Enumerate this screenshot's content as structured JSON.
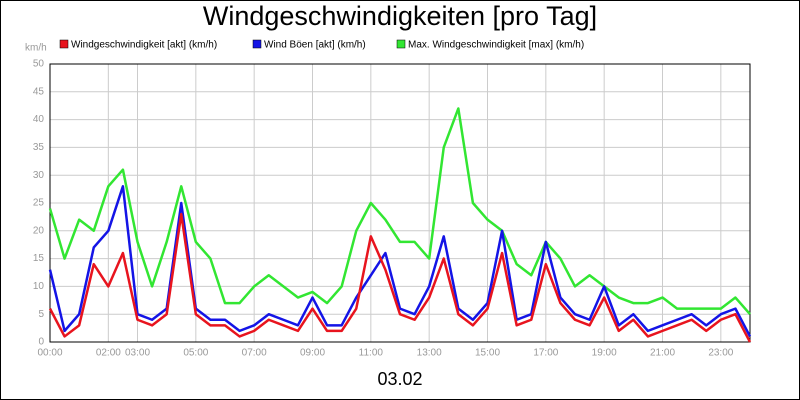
{
  "chart_data": {
    "type": "line",
    "title": "Windgeschwindigkeiten [pro Tag]",
    "y_label": "km/h",
    "x_label": "03.02",
    "x": [
      0,
      0.5,
      1,
      1.5,
      2,
      2.5,
      3,
      3.5,
      4,
      4.5,
      5,
      5.5,
      6,
      6.5,
      7,
      7.5,
      8,
      8.5,
      9,
      9.5,
      10,
      10.5,
      11,
      11.5,
      12,
      12.5,
      13,
      13.5,
      14,
      14.5,
      15,
      15.5,
      16,
      16.5,
      17,
      17.5,
      18,
      18.5,
      19,
      19.5,
      20,
      20.5,
      21,
      21.5,
      22,
      22.5,
      23,
      23.5,
      24
    ],
    "series": [
      {
        "name": "Windgeschwindigkeit [akt] (km/h)",
        "color": "#e8141e",
        "values": [
          6,
          1,
          3,
          14,
          10,
          16,
          4,
          3,
          5,
          23,
          5,
          3,
          3,
          1,
          2,
          4,
          3,
          2,
          6,
          2,
          2,
          6,
          19,
          13,
          5,
          4,
          8,
          15,
          5,
          3,
          6,
          16,
          3,
          4,
          14,
          7,
          4,
          3,
          8,
          2,
          4,
          1,
          2,
          3,
          4,
          2,
          4,
          5,
          0
        ]
      },
      {
        "name": "Wind Böen [akt] (km/h)",
        "color": "#1414e6",
        "values": [
          13,
          2,
          5,
          17,
          20,
          28,
          5,
          4,
          6,
          25,
          6,
          4,
          4,
          2,
          3,
          5,
          4,
          3,
          8,
          3,
          3,
          8,
          12,
          16,
          6,
          5,
          10,
          19,
          6,
          4,
          7,
          20,
          4,
          5,
          18,
          8,
          5,
          4,
          10,
          3,
          5,
          2,
          3,
          4,
          5,
          3,
          5,
          6,
          1
        ]
      },
      {
        "name": "Max. Windgeschwindigkeit [max] (km/h)",
        "color": "#32e632",
        "values": [
          24,
          15,
          22,
          20,
          28,
          31,
          18,
          10,
          18,
          28,
          18,
          15,
          7,
          7,
          10,
          12,
          10,
          8,
          9,
          7,
          10,
          20,
          25,
          22,
          18,
          18,
          15,
          35,
          42,
          25,
          22,
          20,
          14,
          12,
          18,
          15,
          10,
          12,
          10,
          8,
          7,
          7,
          8,
          6,
          6,
          6,
          6,
          8,
          5
        ]
      }
    ],
    "xlim": [
      0,
      24
    ],
    "ylim": [
      0,
      50
    ],
    "xticks": [
      {
        "value": 0,
        "label": "00:00"
      },
      {
        "value": 2,
        "label": "02:00"
      },
      {
        "value": 3,
        "label": "03:00"
      },
      {
        "value": 5,
        "label": "05:00"
      },
      {
        "value": 7,
        "label": "07:00"
      },
      {
        "value": 9,
        "label": "09:00"
      },
      {
        "value": 11,
        "label": "11:00"
      },
      {
        "value": 13,
        "label": "13:00"
      },
      {
        "value": 15,
        "label": "15:00"
      },
      {
        "value": 17,
        "label": "17:00"
      },
      {
        "value": 19,
        "label": "19:00"
      },
      {
        "value": 21,
        "label": "21:00"
      },
      {
        "value": 23,
        "label": "23:00"
      }
    ],
    "yticks": [
      0,
      5,
      10,
      15,
      20,
      25,
      30,
      35,
      40,
      45,
      50
    ],
    "grid": true
  }
}
